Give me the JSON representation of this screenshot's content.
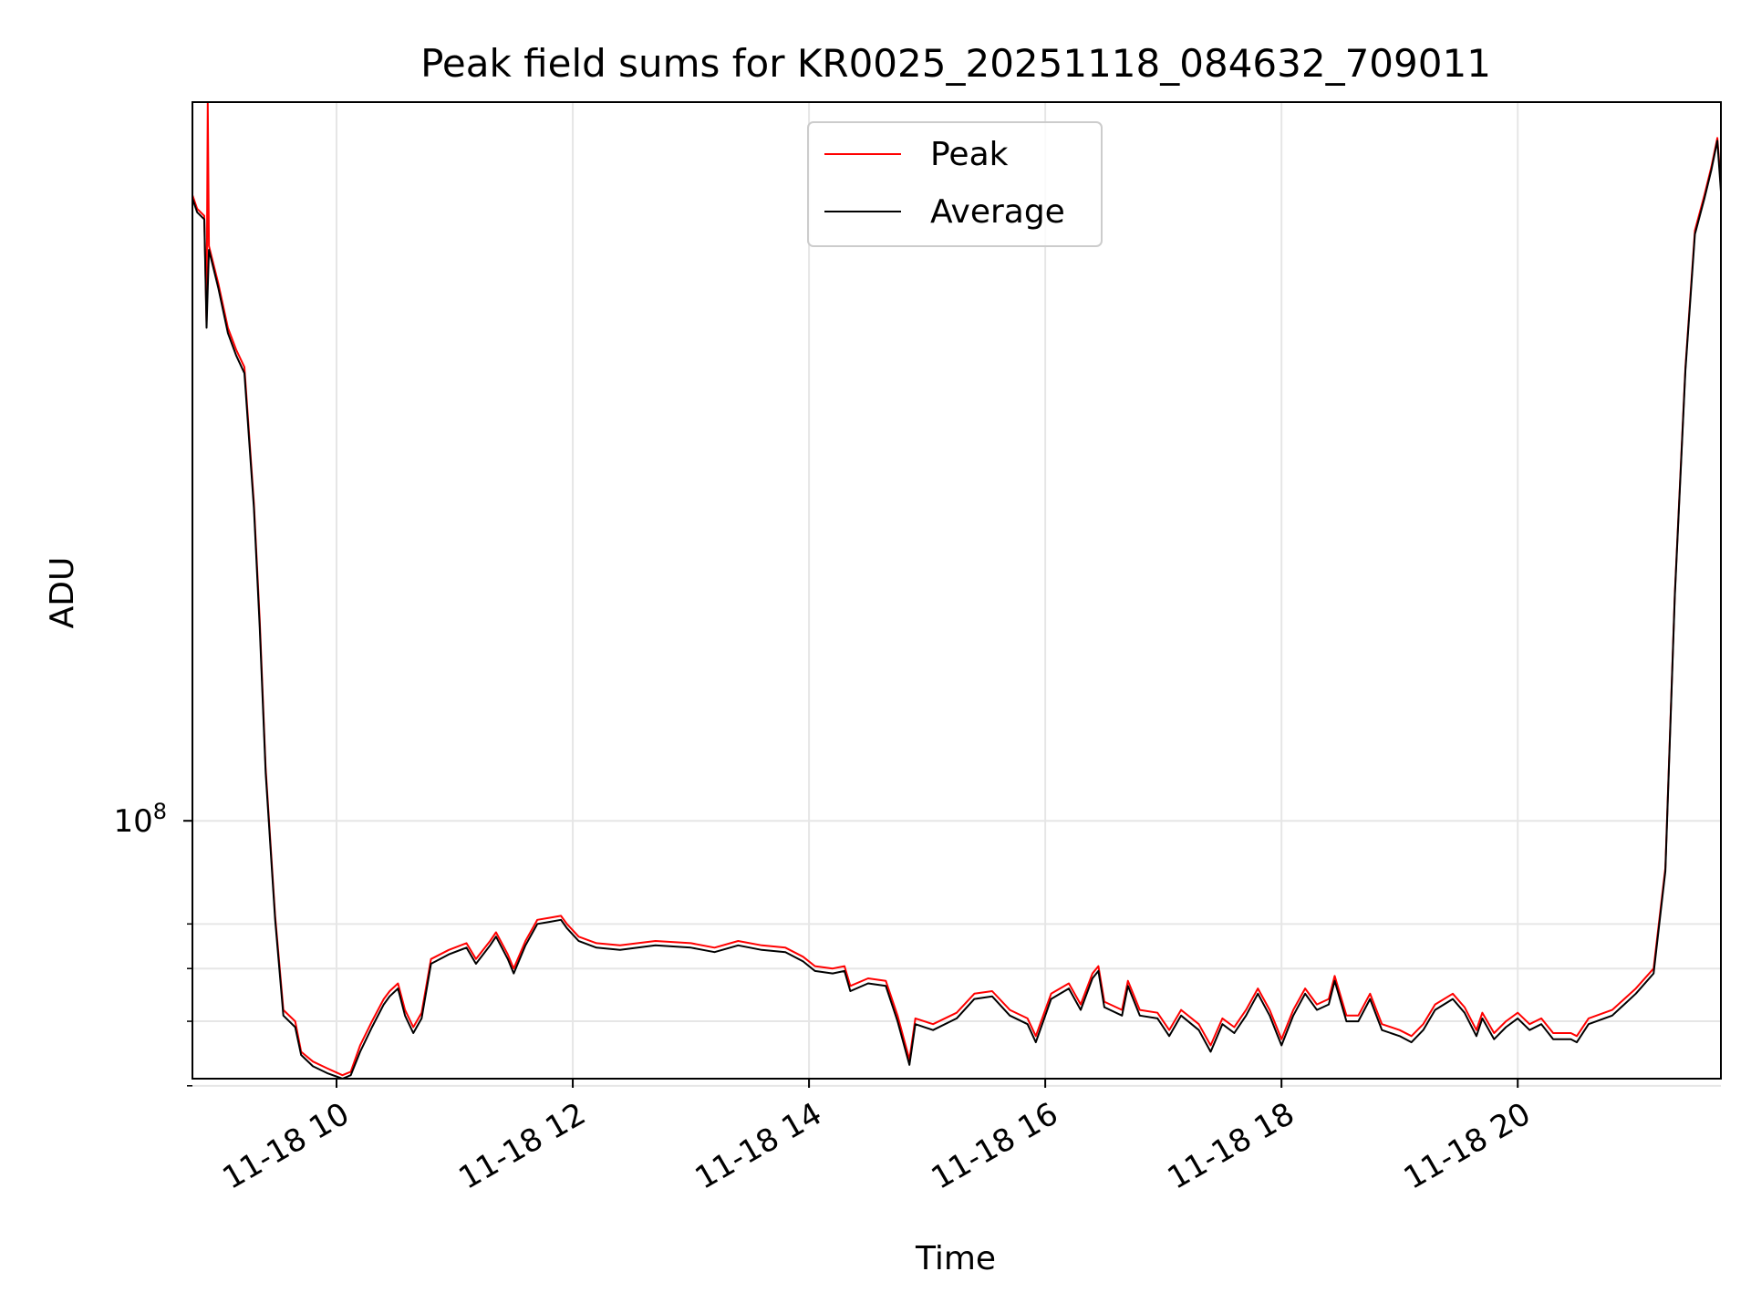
{
  "chart_data": {
    "type": "line",
    "title": "Peak field sums for KR0025_20251118_084632_709011",
    "xlabel": "Time",
    "ylabel": "ADU",
    "yscale": "log",
    "xlim_hours": [
      8.78,
      21.72
    ],
    "ylim": [
      41000000,
      1200000000
    ],
    "x_ticks": [
      {
        "hour": 10,
        "label": "11-18 10"
      },
      {
        "hour": 12,
        "label": "11-18 12"
      },
      {
        "hour": 14,
        "label": "11-18 14"
      },
      {
        "hour": 16,
        "label": "11-18 16"
      },
      {
        "hour": 18,
        "label": "11-18 18"
      },
      {
        "hour": 20,
        "label": "11-18 20"
      }
    ],
    "y_major_ticks": [
      {
        "value": 100000000,
        "base": "10",
        "exponent": "8"
      }
    ],
    "y_minor_ticks": [
      40000000,
      50000000,
      60000000,
      70000000
    ],
    "grid": true,
    "legend_position": "upper center",
    "colors": {
      "peak": "#ff0000",
      "average": "#000000",
      "grid": "#e6e6e6"
    },
    "series": [
      {
        "name": "Peak",
        "color": "#ff0000",
        "points": [
          [
            8.78,
            870000000
          ],
          [
            8.82,
            830000000
          ],
          [
            8.88,
            810000000
          ],
          [
            8.9,
            560000000
          ],
          [
            8.91,
            1200000000
          ],
          [
            8.92,
            730000000
          ],
          [
            9.0,
            640000000
          ],
          [
            9.08,
            550000000
          ],
          [
            9.15,
            510000000
          ],
          [
            9.22,
            480000000
          ],
          [
            9.3,
            300000000
          ],
          [
            9.35,
            200000000
          ],
          [
            9.4,
            120000000
          ],
          [
            9.48,
            72000000
          ],
          [
            9.55,
            52000000
          ],
          [
            9.65,
            50000000
          ],
          [
            9.7,
            45000000
          ],
          [
            9.8,
            43500000
          ],
          [
            9.92,
            42500000
          ],
          [
            10.05,
            41500000
          ],
          [
            10.12,
            42000000
          ],
          [
            10.2,
            46000000
          ],
          [
            10.3,
            50000000
          ],
          [
            10.4,
            54000000
          ],
          [
            10.45,
            55500000
          ],
          [
            10.52,
            57000000
          ],
          [
            10.58,
            52000000
          ],
          [
            10.65,
            49000000
          ],
          [
            10.72,
            51500000
          ],
          [
            10.8,
            62000000
          ],
          [
            10.95,
            64000000
          ],
          [
            11.1,
            65500000
          ],
          [
            11.18,
            62000000
          ],
          [
            11.3,
            66000000
          ],
          [
            11.35,
            68000000
          ],
          [
            11.45,
            63000000
          ],
          [
            11.5,
            60000000
          ],
          [
            11.6,
            66000000
          ],
          [
            11.7,
            71000000
          ],
          [
            11.8,
            71500000
          ],
          [
            11.9,
            72000000
          ],
          [
            11.95,
            70000000
          ],
          [
            12.05,
            67000000
          ],
          [
            12.2,
            65500000
          ],
          [
            12.4,
            65000000
          ],
          [
            12.7,
            66000000
          ],
          [
            13.0,
            65500000
          ],
          [
            13.2,
            64500000
          ],
          [
            13.4,
            66000000
          ],
          [
            13.6,
            65000000
          ],
          [
            13.8,
            64500000
          ],
          [
            13.95,
            62500000
          ],
          [
            14.05,
            60500000
          ],
          [
            14.2,
            60000000
          ],
          [
            14.3,
            60500000
          ],
          [
            14.35,
            56500000
          ],
          [
            14.5,
            58000000
          ],
          [
            14.65,
            57500000
          ],
          [
            14.75,
            51000000
          ],
          [
            14.85,
            43800000
          ],
          [
            14.9,
            50500000
          ],
          [
            15.05,
            49500000
          ],
          [
            15.25,
            51500000
          ],
          [
            15.4,
            55000000
          ],
          [
            15.55,
            55500000
          ],
          [
            15.7,
            52000000
          ],
          [
            15.85,
            50500000
          ],
          [
            15.92,
            47500000
          ],
          [
            16.05,
            55000000
          ],
          [
            16.2,
            57000000
          ],
          [
            16.3,
            53000000
          ],
          [
            16.4,
            59000000
          ],
          [
            16.45,
            60500000
          ],
          [
            16.5,
            53500000
          ],
          [
            16.65,
            52000000
          ],
          [
            16.7,
            57500000
          ],
          [
            16.8,
            52000000
          ],
          [
            16.95,
            51500000
          ],
          [
            17.05,
            48500000
          ],
          [
            17.15,
            52000000
          ],
          [
            17.3,
            49500000
          ],
          [
            17.4,
            46000000
          ],
          [
            17.5,
            50500000
          ],
          [
            17.6,
            49000000
          ],
          [
            17.7,
            52000000
          ],
          [
            17.8,
            56000000
          ],
          [
            17.9,
            52000000
          ],
          [
            18.0,
            47000000
          ],
          [
            18.1,
            52000000
          ],
          [
            18.2,
            56000000
          ],
          [
            18.3,
            53000000
          ],
          [
            18.4,
            54000000
          ],
          [
            18.45,
            58500000
          ],
          [
            18.55,
            51000000
          ],
          [
            18.65,
            51000000
          ],
          [
            18.75,
            55000000
          ],
          [
            18.85,
            49500000
          ],
          [
            19.0,
            48500000
          ],
          [
            19.1,
            47500000
          ],
          [
            19.2,
            49500000
          ],
          [
            19.3,
            53000000
          ],
          [
            19.45,
            55000000
          ],
          [
            19.55,
            52500000
          ],
          [
            19.65,
            48500000
          ],
          [
            19.7,
            51500000
          ],
          [
            19.8,
            48000000
          ],
          [
            19.9,
            50000000
          ],
          [
            20.0,
            51500000
          ],
          [
            20.1,
            49500000
          ],
          [
            20.2,
            50500000
          ],
          [
            20.3,
            48000000
          ],
          [
            20.45,
            48000000
          ],
          [
            20.5,
            47500000
          ],
          [
            20.6,
            50500000
          ],
          [
            20.8,
            52000000
          ],
          [
            21.0,
            56000000
          ],
          [
            21.15,
            60000000
          ],
          [
            21.25,
            85000000
          ],
          [
            21.33,
            220000000
          ],
          [
            21.42,
            480000000
          ],
          [
            21.5,
            770000000
          ],
          [
            21.58,
            870000000
          ],
          [
            21.64,
            960000000
          ],
          [
            21.69,
            1060000000
          ],
          [
            21.72,
            900000000
          ]
        ]
      },
      {
        "name": "Average",
        "color": "#000000",
        "points": [
          [
            8.78,
            860000000
          ],
          [
            8.82,
            820000000
          ],
          [
            8.88,
            800000000
          ],
          [
            8.9,
            550000000
          ],
          [
            8.92,
            720000000
          ],
          [
            9.0,
            630000000
          ],
          [
            9.08,
            540000000
          ],
          [
            9.15,
            500000000
          ],
          [
            9.22,
            470000000
          ],
          [
            9.3,
            295000000
          ],
          [
            9.35,
            195000000
          ],
          [
            9.4,
            118000000
          ],
          [
            9.48,
            71000000
          ],
          [
            9.55,
            51000000
          ],
          [
            9.65,
            49000000
          ],
          [
            9.7,
            44500000
          ],
          [
            9.8,
            42800000
          ],
          [
            9.92,
            41800000
          ],
          [
            10.05,
            41000000
          ],
          [
            10.12,
            41500000
          ],
          [
            10.2,
            45000000
          ],
          [
            10.3,
            49000000
          ],
          [
            10.4,
            53000000
          ],
          [
            10.45,
            54500000
          ],
          [
            10.52,
            56000000
          ],
          [
            10.58,
            51000000
          ],
          [
            10.65,
            48000000
          ],
          [
            10.72,
            50500000
          ],
          [
            10.8,
            61000000
          ],
          [
            10.95,
            63000000
          ],
          [
            11.1,
            64500000
          ],
          [
            11.18,
            61000000
          ],
          [
            11.3,
            65000000
          ],
          [
            11.35,
            67000000
          ],
          [
            11.45,
            62000000
          ],
          [
            11.5,
            59000000
          ],
          [
            11.6,
            65000000
          ],
          [
            11.7,
            70000000
          ],
          [
            11.8,
            70500000
          ],
          [
            11.9,
            71000000
          ],
          [
            11.95,
            69000000
          ],
          [
            12.05,
            66000000
          ],
          [
            12.2,
            64500000
          ],
          [
            12.4,
            64000000
          ],
          [
            12.7,
            65000000
          ],
          [
            13.0,
            64500000
          ],
          [
            13.2,
            63500000
          ],
          [
            13.4,
            65000000
          ],
          [
            13.6,
            64000000
          ],
          [
            13.8,
            63500000
          ],
          [
            13.95,
            61500000
          ],
          [
            14.05,
            59500000
          ],
          [
            14.2,
            59000000
          ],
          [
            14.3,
            59500000
          ],
          [
            14.35,
            55500000
          ],
          [
            14.5,
            57000000
          ],
          [
            14.65,
            56500000
          ],
          [
            14.75,
            50000000
          ],
          [
            14.85,
            43000000
          ],
          [
            14.9,
            49500000
          ],
          [
            15.05,
            48500000
          ],
          [
            15.25,
            50500000
          ],
          [
            15.4,
            54000000
          ],
          [
            15.55,
            54500000
          ],
          [
            15.7,
            51000000
          ],
          [
            15.85,
            49500000
          ],
          [
            15.92,
            46500000
          ],
          [
            16.05,
            54000000
          ],
          [
            16.2,
            56000000
          ],
          [
            16.3,
            52000000
          ],
          [
            16.4,
            58000000
          ],
          [
            16.45,
            59500000
          ],
          [
            16.5,
            52500000
          ],
          [
            16.65,
            51000000
          ],
          [
            16.7,
            56500000
          ],
          [
            16.8,
            51000000
          ],
          [
            16.95,
            50500000
          ],
          [
            17.05,
            47500000
          ],
          [
            17.15,
            51000000
          ],
          [
            17.3,
            48500000
          ],
          [
            17.4,
            45000000
          ],
          [
            17.5,
            49500000
          ],
          [
            17.6,
            48000000
          ],
          [
            17.7,
            51000000
          ],
          [
            17.8,
            55000000
          ],
          [
            17.9,
            51000000
          ],
          [
            18.0,
            46000000
          ],
          [
            18.1,
            51000000
          ],
          [
            18.2,
            55000000
          ],
          [
            18.3,
            52000000
          ],
          [
            18.4,
            53000000
          ],
          [
            18.45,
            57500000
          ],
          [
            18.55,
            50000000
          ],
          [
            18.65,
            50000000
          ],
          [
            18.75,
            54000000
          ],
          [
            18.85,
            48500000
          ],
          [
            19.0,
            47500000
          ],
          [
            19.1,
            46500000
          ],
          [
            19.2,
            48500000
          ],
          [
            19.3,
            52000000
          ],
          [
            19.45,
            54000000
          ],
          [
            19.55,
            51500000
          ],
          [
            19.65,
            47500000
          ],
          [
            19.7,
            50500000
          ],
          [
            19.8,
            47000000
          ],
          [
            19.9,
            49000000
          ],
          [
            20.0,
            50500000
          ],
          [
            20.1,
            48500000
          ],
          [
            20.2,
            49500000
          ],
          [
            20.3,
            47000000
          ],
          [
            20.45,
            47000000
          ],
          [
            20.5,
            46500000
          ],
          [
            20.6,
            49500000
          ],
          [
            20.8,
            51000000
          ],
          [
            21.0,
            55000000
          ],
          [
            21.15,
            59000000
          ],
          [
            21.25,
            84000000
          ],
          [
            21.33,
            218000000
          ],
          [
            21.42,
            475000000
          ],
          [
            21.5,
            760000000
          ],
          [
            21.58,
            860000000
          ],
          [
            21.64,
            950000000
          ],
          [
            21.69,
            1050000000
          ],
          [
            21.72,
            880000000
          ]
        ]
      }
    ]
  }
}
